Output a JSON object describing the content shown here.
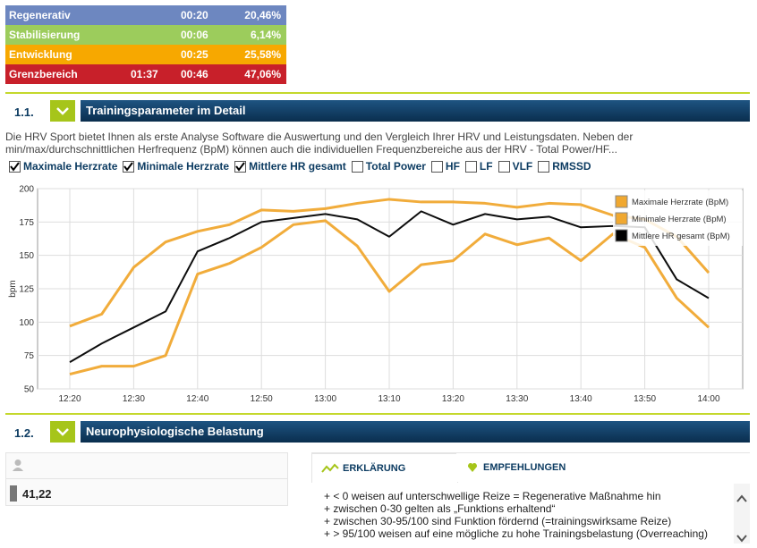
{
  "zones": [
    {
      "name": "Regenerativ",
      "time": "00:20",
      "percent": "20,46%",
      "color": "#6d87c0"
    },
    {
      "name": "Stabilisierung",
      "time": "00:06",
      "percent": "6,14%",
      "color": "#9ccc5c"
    },
    {
      "name": "Entwicklung",
      "time": "00:25",
      "percent": "25,58%",
      "color": "#f7a800"
    },
    {
      "name": "Grenzbereich",
      "duration": "01:37",
      "time": "00:46",
      "percent": "47,06%",
      "color": "#c8202a"
    }
  ],
  "section1": {
    "number": "1.1.",
    "title": "Trainingsparameter im Detail",
    "description": "Die HRV Sport bietet Ihnen als erste Analyse Software die Auswertung und den Vergleich Ihrer HRV und Leistungsdaten. Neben der min/max/durchschnittlichen Herfrequenz (BpM) können auch die individuellen Frequenzbereiche aus der HRV - Total Power/HF..."
  },
  "checkboxes": [
    {
      "label": "Maximale Herzrate",
      "checked": true
    },
    {
      "label": "Minimale Herzrate",
      "checked": true
    },
    {
      "label": "Mittlere HR gesamt",
      "checked": true
    },
    {
      "label": "Total Power",
      "checked": false
    },
    {
      "label": "HF",
      "checked": false
    },
    {
      "label": "LF",
      "checked": false
    },
    {
      "label": "VLF",
      "checked": false
    },
    {
      "label": "RMSSD",
      "checked": false
    }
  ],
  "chart_data": {
    "type": "line",
    "ylabel": "bpm",
    "categories": [
      "12:20",
      null,
      "12:30",
      null,
      "12:40",
      null,
      "12:50",
      null,
      "13:00",
      null,
      "13:10",
      null,
      "13:20",
      null,
      "13:30",
      null,
      "13:40",
      null,
      "13:50",
      null,
      "14:00"
    ],
    "series": [
      {
        "name": "Maximale Herzrate (BpM)",
        "color": "#f0a830",
        "values": [
          97,
          106,
          141,
          160,
          168,
          173,
          184,
          183,
          185,
          189,
          192,
          190,
          190,
          189,
          186,
          189,
          188,
          180,
          177,
          164,
          137
        ]
      },
      {
        "name": "Minimale Herzrate (BpM)",
        "color": "#f0a830",
        "values": [
          61,
          67,
          67,
          75,
          136,
          144,
          156,
          173,
          176,
          157,
          123,
          143,
          146,
          166,
          158,
          163,
          146,
          166,
          156,
          118,
          96
        ]
      },
      {
        "name": "Mittlere HR gesamt (BpM)",
        "color": "#000000",
        "values": [
          70,
          84,
          96,
          108,
          153,
          163,
          175,
          178,
          181,
          177,
          164,
          183,
          173,
          181,
          177,
          179,
          171,
          172,
          171,
          132,
          118
        ]
      }
    ],
    "ylim": [
      50,
      200
    ],
    "yticks": [
      50,
      75,
      100,
      125,
      150,
      175,
      200
    ],
    "grid": true,
    "legend": "top-right"
  },
  "section2": {
    "number": "1.2.",
    "title": "Neurophysiologische Belastung",
    "value": "41,22",
    "tabs": [
      "ERKLÄRUNG",
      "EMPFEHLUNGEN"
    ],
    "explanation": [
      "+ < 0 weisen auf unterschwellige Reize = Regenerative Maßnahme hin",
      "+ zwischen 0-30  gelten als „Funktions erhaltend“",
      "+ zwischen 30-95/100 sind Funktion fördernd (=trainingswirksame Reize)",
      "+ > 95/100 weisen auf eine mögliche zu hohe Trainingsbelastung (Overreaching)"
    ]
  }
}
